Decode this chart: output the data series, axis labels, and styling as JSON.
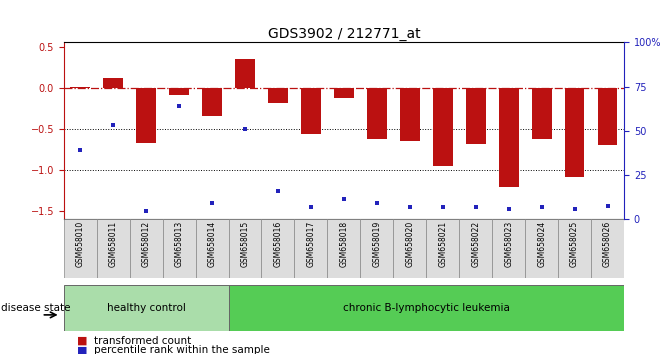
{
  "title": "GDS3902 / 212771_at",
  "samples": [
    "GSM658010",
    "GSM658011",
    "GSM658012",
    "GSM658013",
    "GSM658014",
    "GSM658015",
    "GSM658016",
    "GSM658017",
    "GSM658018",
    "GSM658019",
    "GSM658020",
    "GSM658021",
    "GSM658022",
    "GSM658023",
    "GSM658024",
    "GSM658025",
    "GSM658026"
  ],
  "bar_values": [
    0.01,
    0.12,
    -0.67,
    -0.09,
    -0.34,
    0.35,
    -0.19,
    -0.56,
    -0.13,
    -0.62,
    -0.65,
    -0.95,
    -0.68,
    -1.2,
    -0.62,
    -1.08,
    -0.7
  ],
  "dot_values": [
    -0.75,
    -0.45,
    -1.5,
    -0.22,
    -1.4,
    -0.5,
    -1.25,
    -1.45,
    -1.35,
    -1.4,
    -1.45,
    -1.45,
    -1.45,
    -1.47,
    -1.45,
    -1.47,
    -1.44
  ],
  "healthy_count": 5,
  "bar_color": "#bb1111",
  "dot_color": "#2222bb",
  "ylim": [
    -1.6,
    0.55
  ],
  "right_ylim": [
    0,
    100
  ],
  "right_yticks": [
    0,
    25,
    50,
    75,
    100
  ],
  "right_yticklabels": [
    "0",
    "25",
    "50",
    "75",
    "100%"
  ],
  "yticks": [
    -1.5,
    -1.0,
    -0.5,
    0.0,
    0.5
  ],
  "hline_y": 0.0,
  "dotted_lines": [
    -0.5,
    -1.0
  ],
  "group1_label": "healthy control",
  "group2_label": "chronic B-lymphocytic leukemia",
  "group1_color": "#aaddaa",
  "group2_color": "#55cc55",
  "disease_state_label": "disease state",
  "legend_bar_label": "transformed count",
  "legend_dot_label": "percentile rank within the sample",
  "bar_width": 0.6,
  "title_fontsize": 10,
  "tick_fontsize": 7,
  "label_fontsize": 7
}
